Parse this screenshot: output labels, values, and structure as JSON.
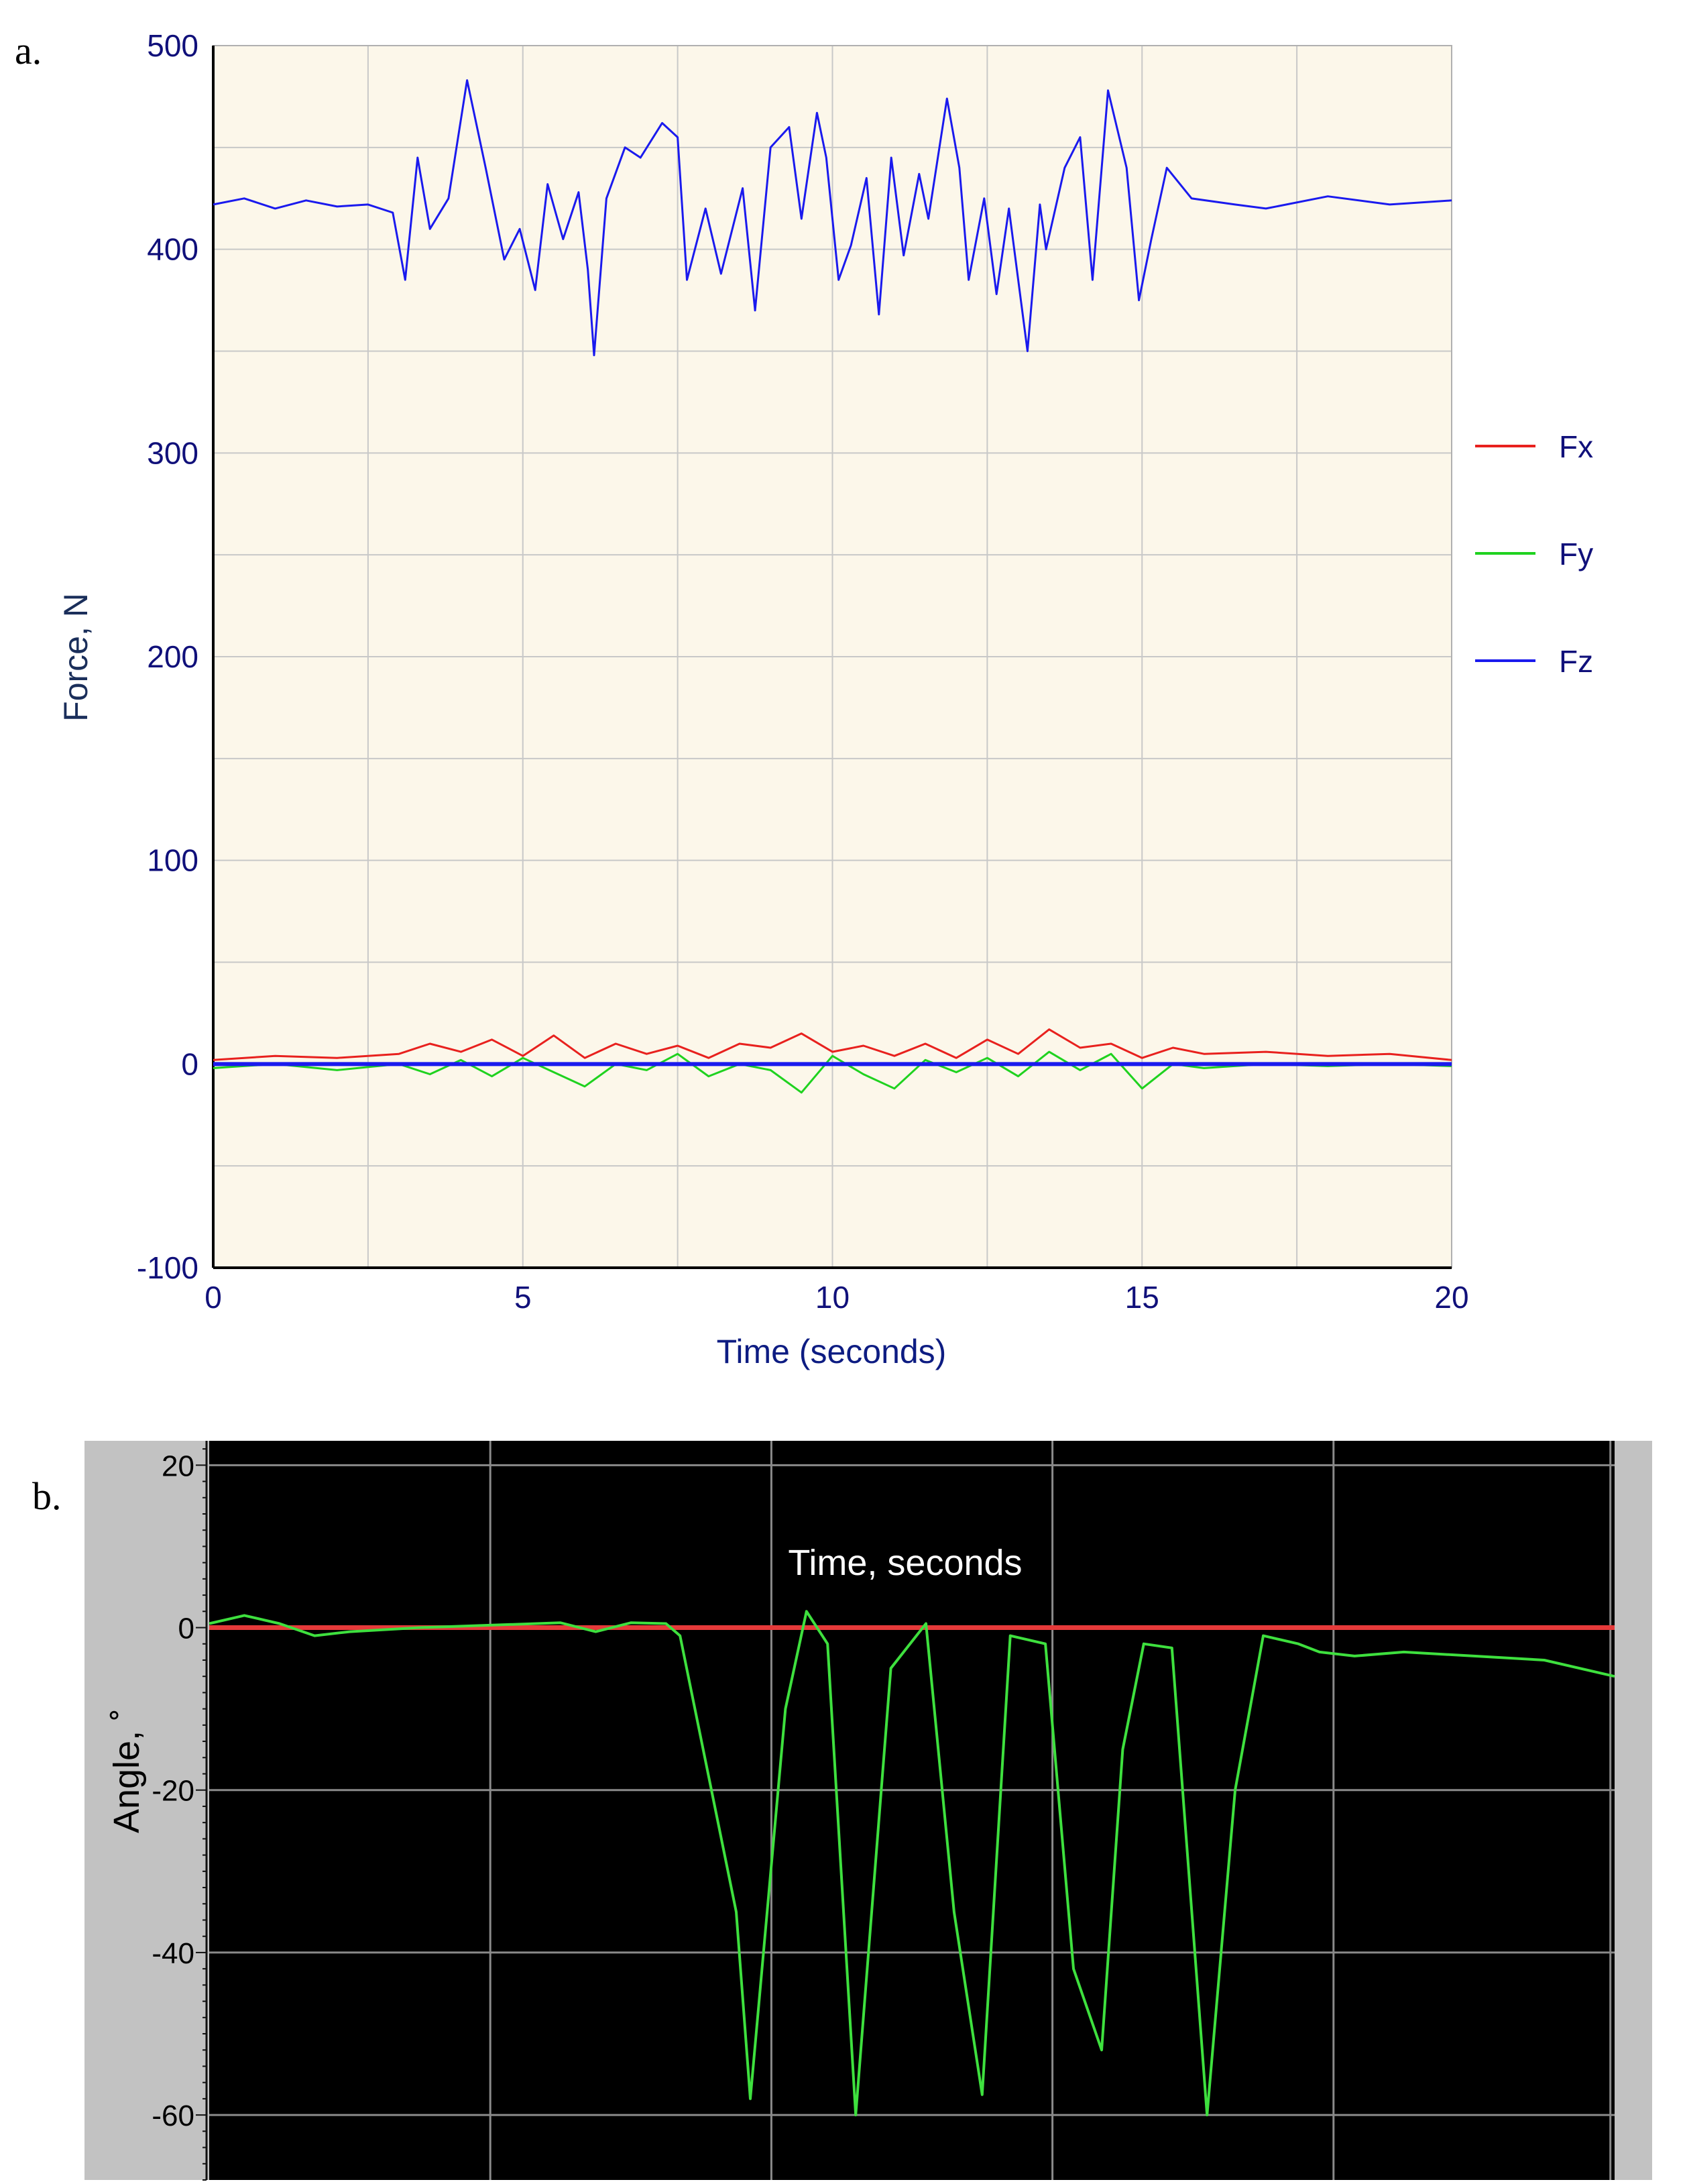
{
  "chart_data": [
    {
      "panel_label": "a.",
      "type": "line",
      "title": "",
      "xlabel": "Time (seconds)",
      "ylabel": "Force, N",
      "xlim": [
        0,
        20
      ],
      "ylim": [
        -100,
        500
      ],
      "xticks": [
        0,
        5,
        10,
        15,
        20
      ],
      "yticks": [
        -100,
        0,
        100,
        200,
        300,
        400,
        500
      ],
      "grid": true,
      "background": "#fcf7ea",
      "legend_position": "right",
      "legend": [
        {
          "name": "Fx",
          "color": "#e8211e"
        },
        {
          "name": "Fy",
          "color": "#1fd21f"
        },
        {
          "name": "Fz",
          "color": "#1a1aee"
        }
      ],
      "series": [
        {
          "name": "Fz",
          "color": "#1a1aee",
          "x": [
            0,
            0.5,
            1,
            1.5,
            2,
            2.5,
            2.9,
            3.1,
            3.3,
            3.5,
            3.8,
            4.1,
            4.4,
            4.7,
            4.95,
            5.2,
            5.4,
            5.65,
            5.9,
            6.05,
            6.15,
            6.35,
            6.65,
            6.9,
            7.25,
            7.5,
            7.65,
            7.95,
            8.2,
            8.55,
            8.75,
            9.0,
            9.3,
            9.5,
            9.75,
            9.9,
            10.1,
            10.3,
            10.55,
            10.75,
            10.95,
            11.15,
            11.4,
            11.55,
            11.85,
            12.05,
            12.2,
            12.45,
            12.65,
            12.85,
            13.15,
            13.35,
            13.45,
            13.75,
            14.0,
            14.2,
            14.45,
            14.75,
            14.95,
            15.15,
            15.4,
            15.8,
            16.5,
            17,
            18,
            19,
            20
          ],
          "y": [
            422,
            425,
            420,
            424,
            421,
            422,
            418,
            385,
            445,
            410,
            425,
            483,
            440,
            395,
            410,
            380,
            432,
            405,
            428,
            390,
            348,
            425,
            450,
            445,
            462,
            455,
            385,
            420,
            388,
            430,
            370,
            450,
            460,
            415,
            467,
            445,
            385,
            402,
            435,
            368,
            445,
            397,
            437,
            415,
            474,
            440,
            385,
            425,
            378,
            420,
            350,
            422,
            400,
            440,
            455,
            385,
            478,
            440,
            375,
            405,
            440,
            425,
            422,
            420,
            426,
            422,
            424
          ]
        },
        {
          "name": "Fx",
          "color": "#e8211e",
          "x": [
            0,
            1,
            2,
            3,
            3.5,
            4,
            4.5,
            5,
            5.5,
            6,
            6.5,
            7,
            7.5,
            8,
            8.5,
            9,
            9.5,
            10,
            10.5,
            11,
            11.5,
            12,
            12.5,
            13,
            13.5,
            14,
            14.5,
            15,
            15.5,
            16,
            17,
            18,
            19,
            20
          ],
          "y": [
            2,
            4,
            3,
            5,
            10,
            6,
            12,
            4,
            14,
            3,
            10,
            5,
            9,
            3,
            10,
            8,
            15,
            6,
            9,
            4,
            10,
            3,
            12,
            5,
            17,
            8,
            10,
            3,
            8,
            5,
            6,
            4,
            5,
            2
          ]
        },
        {
          "name": "Fy",
          "color": "#1fd21f",
          "x": [
            0,
            1,
            2,
            3,
            3.5,
            4,
            4.5,
            5,
            5.5,
            6,
            6.5,
            7,
            7.5,
            8,
            8.5,
            9,
            9.5,
            10,
            10.5,
            11,
            11.5,
            12,
            12.5,
            13,
            13.5,
            14,
            14.5,
            15,
            15.5,
            16,
            17,
            18,
            19,
            20
          ],
          "y": [
            -2,
            0,
            -3,
            0,
            -5,
            2,
            -6,
            3,
            -4,
            -11,
            0,
            -3,
            5,
            -6,
            0,
            -3,
            -14,
            4,
            -5,
            -12,
            2,
            -4,
            3,
            -6,
            6,
            -3,
            5,
            -12,
            0,
            -2,
            0,
            -1,
            0,
            -1
          ]
        }
      ]
    },
    {
      "panel_label": "b.",
      "type": "line",
      "title": "Time, seconds",
      "xlabel": "",
      "ylabel": "Angle, ˚",
      "xlim": [
        0,
        20
      ],
      "ylim": [
        -68,
        23
      ],
      "yticks": [
        20,
        0,
        -20,
        -40,
        -60
      ],
      "grid": true,
      "background": "#000000",
      "frame_color": "#c2c2c2",
      "series": [
        {
          "name": "",
          "color": "#e53a3a",
          "x": [
            0,
            20
          ],
          "y": [
            0,
            0
          ]
        },
        {
          "name": "",
          "color": "#3ee03e",
          "x": [
            0,
            0.5,
            1.0,
            1.5,
            2.0,
            3.0,
            4.0,
            5.0,
            5.5,
            6.0,
            6.5,
            6.7,
            7.5,
            7.7,
            8.2,
            8.5,
            8.8,
            9.2,
            9.7,
            10.2,
            10.6,
            11.0,
            11.4,
            11.9,
            12.3,
            12.7,
            13.0,
            13.3,
            13.7,
            14.2,
            14.6,
            15.0,
            15.5,
            15.8,
            16.3,
            17,
            18,
            19,
            20
          ],
          "y": [
            0.5,
            1.5,
            0.5,
            -1,
            -0.5,
            0,
            0.3,
            0.6,
            -0.5,
            0.6,
            0.5,
            -1,
            -35,
            -58,
            -10,
            2,
            -2,
            -60,
            -5,
            0.5,
            -35,
            -57.5,
            -1,
            -2,
            -42,
            -52,
            -15,
            -2,
            -2.5,
            -60,
            -20,
            -1,
            -2,
            -3,
            -3.5,
            -3,
            -3.5,
            -4,
            -6
          ]
        }
      ]
    }
  ]
}
